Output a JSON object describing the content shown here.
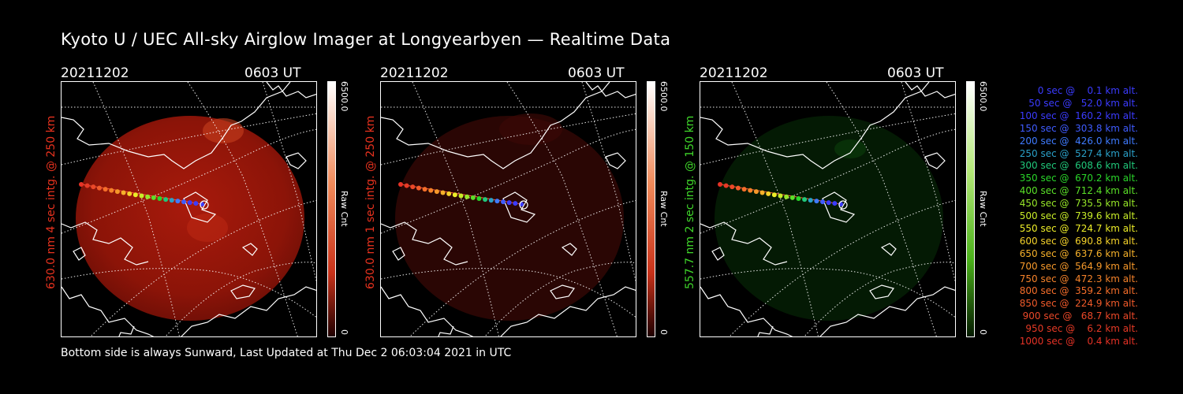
{
  "title": "Kyoto U / UEC All-sky Airglow Imager at Longyearbyen — Realtime Data",
  "footer": "Bottom side is always Sunward, Last Updated at Thu Dec  2 06:03:04 2021 in UTC",
  "panels": [
    {
      "date": "20211202",
      "time": "0603 UT",
      "side_label": "630.0 nm 4 sec intg. @ 250 km",
      "label_color": "#e8321e",
      "colorbar_max": "6500.0",
      "colorbar_min": "0",
      "colorbar_label": "Raw Cnt",
      "colorbar_color": "#e8321e"
    },
    {
      "date": "20211202",
      "time": "0603 UT",
      "side_label": "630.0 nm 1 sec intg. @ 250 km",
      "label_color": "#e8321e",
      "colorbar_max": "6500.0",
      "colorbar_min": "0",
      "colorbar_label": "Raw Cnt",
      "colorbar_color": "#e8321e"
    },
    {
      "date": "20211202",
      "time": "0603 UT",
      "side_label": "557.7 nm 2 sec intg. @ 150 km",
      "label_color": "#3fd62a",
      "colorbar_max": "6500.0",
      "colorbar_min": "0",
      "colorbar_label": "Raw Cnt",
      "colorbar_color": "#4dc21a"
    }
  ],
  "legend": [
    {
      "text": "0 sec @    0.1 km alt.",
      "color": "#3b3bff"
    },
    {
      "text": "50 sec @   52.0 km alt.",
      "color": "#3b3bff"
    },
    {
      "text": "100 sec @  160.2 km alt.",
      "color": "#3b3bff"
    },
    {
      "text": "150 sec @  303.8 km alt.",
      "color": "#3f5cff"
    },
    {
      "text": "200 sec @  426.0 km alt.",
      "color": "#3f7bff"
    },
    {
      "text": "250 sec @  527.4 km alt.",
      "color": "#2aa0c8"
    },
    {
      "text": "300 sec @  608.6 km alt.",
      "color": "#20c87a"
    },
    {
      "text": "350 sec @  670.2 km alt.",
      "color": "#2ad62a"
    },
    {
      "text": "400 sec @  712.4 km alt.",
      "color": "#5ae028"
    },
    {
      "text": "450 sec @  735.5 km alt.",
      "color": "#96e628"
    },
    {
      "text": "500 sec @  739.6 km alt.",
      "color": "#c8ec28"
    },
    {
      "text": "550 sec @  724.7 km alt.",
      "color": "#ecec28"
    },
    {
      "text": "600 sec @  690.8 km alt.",
      "color": "#f5d22a"
    },
    {
      "text": "650 sec @  637.6 km alt.",
      "color": "#f5b02a"
    },
    {
      "text": "700 sec @  564.9 km alt.",
      "color": "#f5982a"
    },
    {
      "text": "750 sec @  472.3 km alt.",
      "color": "#f5822a"
    },
    {
      "text": "800 sec @  359.2 km alt.",
      "color": "#f56e2a"
    },
    {
      "text": "850 sec @  224.9 km alt.",
      "color": "#f05a2a"
    },
    {
      "text": "900 sec @   68.7 km alt.",
      "color": "#eb4828"
    },
    {
      "text": "950 sec @    6.2 km alt.",
      "color": "#e63a26"
    },
    {
      "text": "1000 sec @    0.4 km alt.",
      "color": "#e63226"
    }
  ]
}
